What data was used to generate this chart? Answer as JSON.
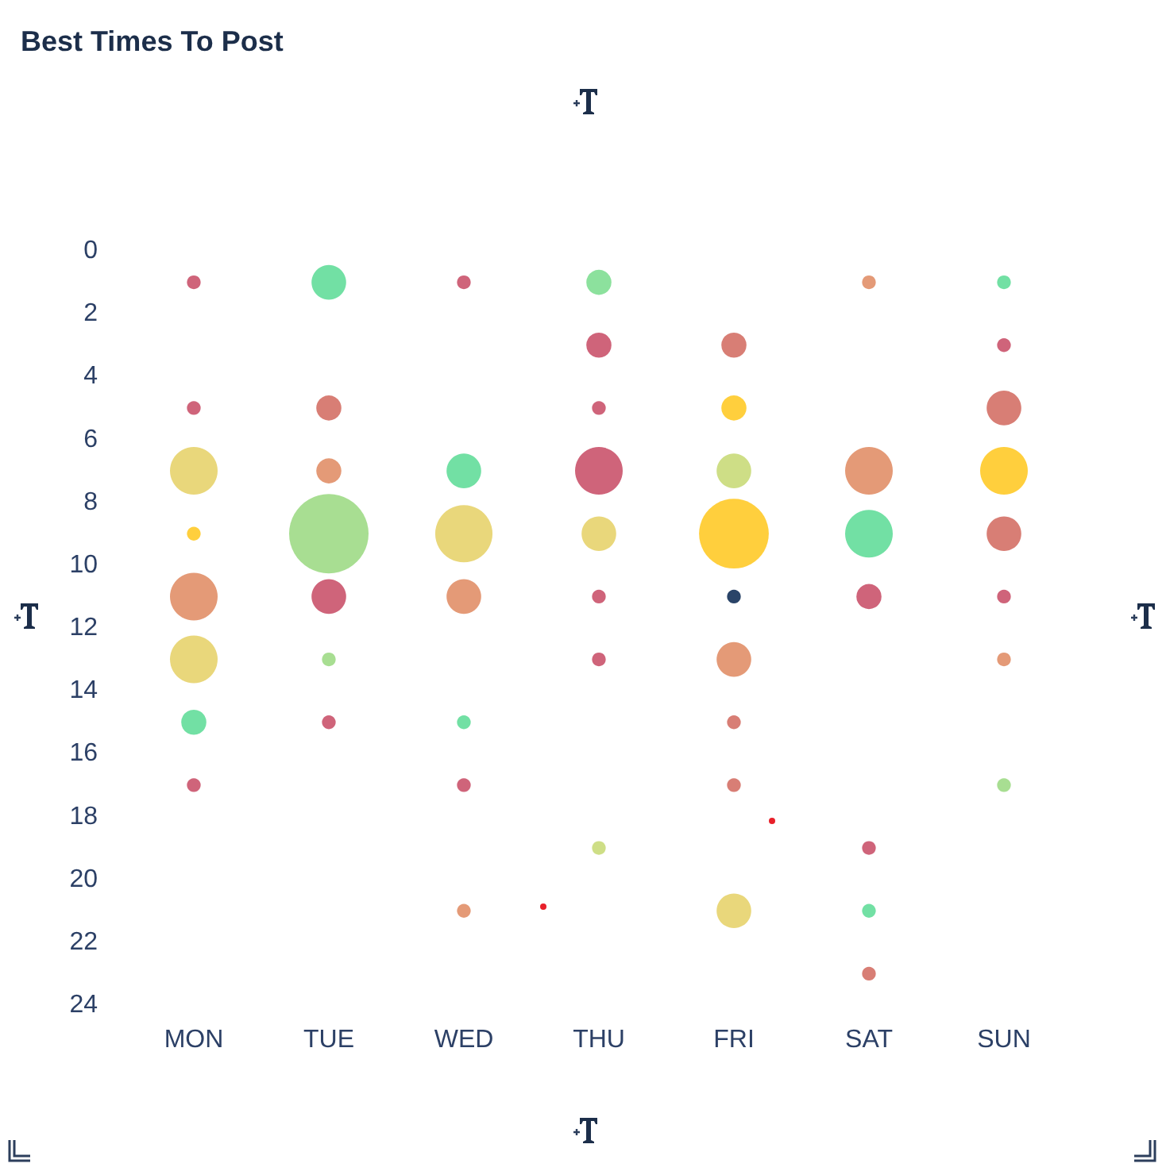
{
  "chart_data": {
    "type": "bubble",
    "title": "Best Times To Post",
    "categories": [
      "MON",
      "TUE",
      "WED",
      "THU",
      "FRI",
      "SAT",
      "SUN"
    ],
    "series": [
      {
        "x": [
          "MON",
          "MON",
          "MON",
          "MON",
          "MON",
          "MON",
          "MON",
          "MON",
          "TUE",
          "TUE",
          "TUE",
          "TUE",
          "TUE",
          "TUE",
          "TUE",
          "WED",
          "WED",
          "WED",
          "WED",
          "WED",
          "WED",
          "WED",
          "THU",
          "THU",
          "THU",
          "THU",
          "THU",
          "THU",
          "THU",
          "THU",
          "FRI",
          "FRI",
          "FRI",
          "FRI",
          "FRI",
          "FRI",
          "FRI",
          "FRI",
          "FRI",
          "SAT",
          "SAT",
          "SAT",
          "SAT",
          "SAT",
          "SAT",
          "SAT",
          "SUN",
          "SUN",
          "SUN",
          "SUN",
          "SUN",
          "SUN",
          "SUN",
          "SUN"
        ],
        "values": [
          1,
          5,
          7,
          9,
          11,
          13,
          15,
          17,
          1,
          5,
          7,
          9,
          11,
          13,
          15,
          1,
          7,
          9,
          11,
          15,
          17,
          21,
          1,
          3,
          5,
          7,
          9,
          11,
          13,
          19,
          3,
          5,
          7,
          9,
          11,
          13,
          15,
          17,
          21,
          1,
          7,
          9,
          11,
          19,
          21,
          23,
          1,
          3,
          5,
          7,
          9,
          11,
          13,
          17
        ],
        "sizes": [
          0.03,
          0.03,
          0.36,
          0.03,
          0.36,
          0.36,
          0.1,
          0.03,
          0.19,
          0.1,
          0.1,
          1,
          0.19,
          0.03,
          0.03,
          0.03,
          0.19,
          0.52,
          0.19,
          0.03,
          0.03,
          0.03,
          0.1,
          0.1,
          0.03,
          0.36,
          0.19,
          0.03,
          0.03,
          0.03,
          0.1,
          0.1,
          0.19,
          0.77,
          0.03,
          0.19,
          0.03,
          0.03,
          0.19,
          0.03,
          0.36,
          0.36,
          0.1,
          0.03,
          0.03,
          0.03,
          0.03,
          0.03,
          0.19,
          0.36,
          0.19,
          0.03,
          0.03,
          0.03
        ],
        "colors": [
          "#cc5c73",
          "#cc5c73",
          "#e8d574",
          "#ffcc33",
          "#e39570",
          "#e8d574",
          "#6ade9f",
          "#cc5c73",
          "#6ade9f",
          "#d6776e",
          "#e39570",
          "#a3dc8c",
          "#cc5c73",
          "#a3dc8c",
          "#cc5c73",
          "#cc5c73",
          "#6ade9f",
          "#e8d574",
          "#e39570",
          "#6ade9f",
          "#cc5c73",
          "#e39570",
          "#86df98",
          "#cc5c73",
          "#cc5c73",
          "#cc5c73",
          "#e8d574",
          "#cc5c73",
          "#cc5c73",
          "#cbdc7f",
          "#d6776e",
          "#ffcc33",
          "#cbdc7f",
          "#ffcc33",
          "#1f3a60",
          "#e39570",
          "#d6776e",
          "#d6776e",
          "#e8d574",
          "#e39570",
          "#e39570",
          "#6ade9f",
          "#cc5c73",
          "#cc5c73",
          "#6ade9f",
          "#d6776e",
          "#6ade9f",
          "#cc5c73",
          "#d6776e",
          "#ffcc33",
          "#d6776e",
          "#cc5c73",
          "#e39570",
          "#a3dc8c"
        ]
      }
    ],
    "ylim": [
      24,
      0
    ],
    "yticks": [
      0,
      2,
      4,
      6,
      8,
      10,
      12,
      14,
      16,
      18,
      20,
      22,
      24
    ],
    "grid": false
  }
}
